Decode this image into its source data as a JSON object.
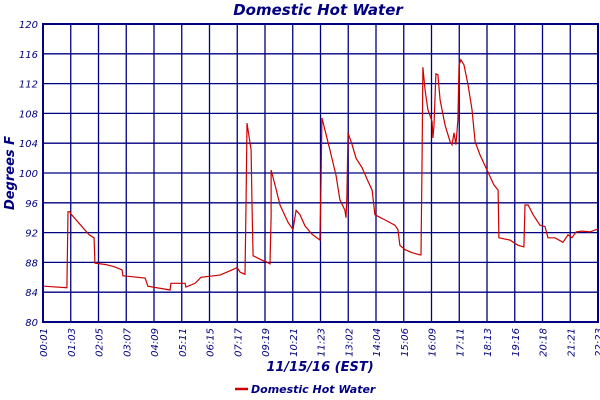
{
  "chart_data": {
    "type": "line",
    "title": "Domestic Hot Water",
    "xlabel": "11/15/16 (EST)",
    "ylabel": "Degrees F",
    "ylim": [
      80,
      120
    ],
    "yticks": [
      80,
      84,
      88,
      92,
      96,
      100,
      104,
      108,
      112,
      116,
      120
    ],
    "x_tick_labels": [
      "00:01",
      "01:03",
      "02:05",
      "03:07",
      "04:09",
      "05:11",
      "06:15",
      "07:17",
      "09:19",
      "10:21",
      "11:23",
      "13:02",
      "14:04",
      "15:06",
      "16:09",
      "17:11",
      "18:13",
      "19:16",
      "20:18",
      "21:21",
      "22:23"
    ],
    "x_units": "tick index (0 = 00:01, 20 = 22:23)",
    "grid": true,
    "legend_position": "bottom-center",
    "colors": {
      "series": "#cc0000",
      "axes": "#000080"
    },
    "series": [
      {
        "name": "Domestic Hot Water",
        "x": [
          0.04,
          0.86,
          0.9,
          0.97,
          1.01,
          1.66,
          1.84,
          1.87,
          2.27,
          2.59,
          2.85,
          2.88,
          3.68,
          3.78,
          4.58,
          4.61,
          5.12,
          5.15,
          5.48,
          5.69,
          6.38,
          6.81,
          6.99,
          7.1,
          7.28,
          7.32,
          7.35,
          7.5,
          7.53,
          7.57,
          7.89,
          8.04,
          8.18,
          8.22,
          8.22,
          8.36,
          8.54,
          8.83,
          9.01,
          9.12,
          9.26,
          9.44,
          9.69,
          9.98,
          10.02,
          10.05,
          10.16,
          10.34,
          10.56,
          10.7,
          10.88,
          10.92,
          10.95,
          10.99,
          11.14,
          11.28,
          11.5,
          11.71,
          11.86,
          11.96,
          12.32,
          12.68,
          12.79,
          12.86,
          13.05,
          13.3,
          13.59,
          13.62,
          13.66,
          13.69,
          13.77,
          13.87,
          14.02,
          14.05,
          14.09,
          14.16,
          14.23,
          14.31,
          14.49,
          14.67,
          14.74,
          14.81,
          14.88,
          14.95,
          14.99,
          15.06,
          15.17,
          15.32,
          15.46,
          15.57,
          15.75,
          16.0,
          16.25,
          16.4,
          16.43,
          16.83,
          17.12,
          17.33,
          17.37,
          17.48,
          17.66,
          17.91,
          18.09,
          18.2,
          18.45,
          18.74,
          18.92,
          19.06,
          19.21,
          19.42,
          19.71,
          20.0
        ],
        "y": [
          84.8,
          84.6,
          94.8,
          94.8,
          94.5,
          91.7,
          91.3,
          87.9,
          87.7,
          87.4,
          87.0,
          86.2,
          85.9,
          84.8,
          84.3,
          85.2,
          85.2,
          84.7,
          85.2,
          86.0,
          86.3,
          87.0,
          87.3,
          86.7,
          86.4,
          96.5,
          106.7,
          103.1,
          95.7,
          88.9,
          88.3,
          88.1,
          87.8,
          94.1,
          100.4,
          98.4,
          95.7,
          93.4,
          92.4,
          95.0,
          94.4,
          92.9,
          91.8,
          91.0,
          99.3,
          107.4,
          105.8,
          103.1,
          99.7,
          96.4,
          95.0,
          94.0,
          96.8,
          105.4,
          103.8,
          102.0,
          100.7,
          98.9,
          97.7,
          94.4,
          93.7,
          93.0,
          92.4,
          90.3,
          89.7,
          89.3,
          89.0,
          89.0,
          102.4,
          114.2,
          111.1,
          108.5,
          106.9,
          104.7,
          106.4,
          113.3,
          113.2,
          109.8,
          106.4,
          104.2,
          103.8,
          105.4,
          103.8,
          107.1,
          114.5,
          115.2,
          114.5,
          111.8,
          108.5,
          104.2,
          102.4,
          100.4,
          98.4,
          97.7,
          91.3,
          91.0,
          90.3,
          90.1,
          95.7,
          95.7,
          94.4,
          93.0,
          92.8,
          91.3,
          91.3,
          90.7,
          91.7,
          91.3,
          92.1,
          92.2,
          92.1,
          92.5
        ]
      }
    ]
  }
}
